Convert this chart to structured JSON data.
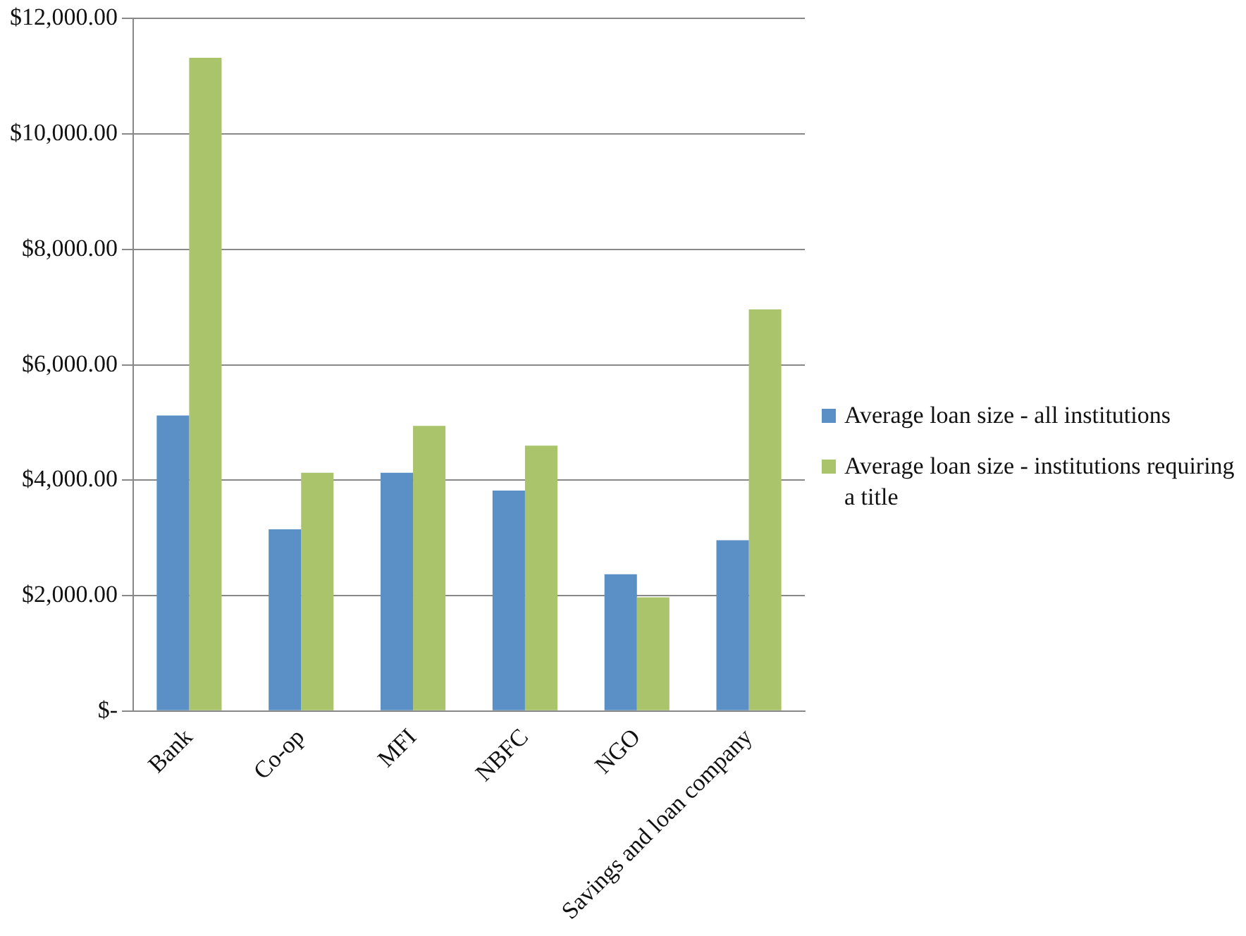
{
  "chart_data": {
    "type": "bar",
    "categories": [
      "Bank",
      "Co-op",
      "MFI",
      "NBFC",
      "NGO",
      "Savings and loan company"
    ],
    "series": [
      {
        "name": "Average loan size - all institutions",
        "color": "#5b90c6",
        "values": [
          5120,
          3150,
          4130,
          3820,
          2370,
          2960
        ]
      },
      {
        "name": "Average loan size - institutions requiring a title",
        "color": "#a9c46a",
        "values": [
          11320,
          4130,
          4940,
          4600,
          1970,
          6960
        ]
      }
    ],
    "ylim": [
      0,
      12000
    ],
    "yticks": [
      {
        "value": 0,
        "label": "$-"
      },
      {
        "value": 2000,
        "label": "$2,000.00"
      },
      {
        "value": 4000,
        "label": "$4,000.00"
      },
      {
        "value": 6000,
        "label": "$6,000.00"
      },
      {
        "value": 8000,
        "label": "$8,000.00"
      },
      {
        "value": 10000,
        "label": "$10,000.00"
      },
      {
        "value": 12000,
        "label": "$12,000.00"
      }
    ],
    "grid": "y",
    "legend": "right"
  }
}
